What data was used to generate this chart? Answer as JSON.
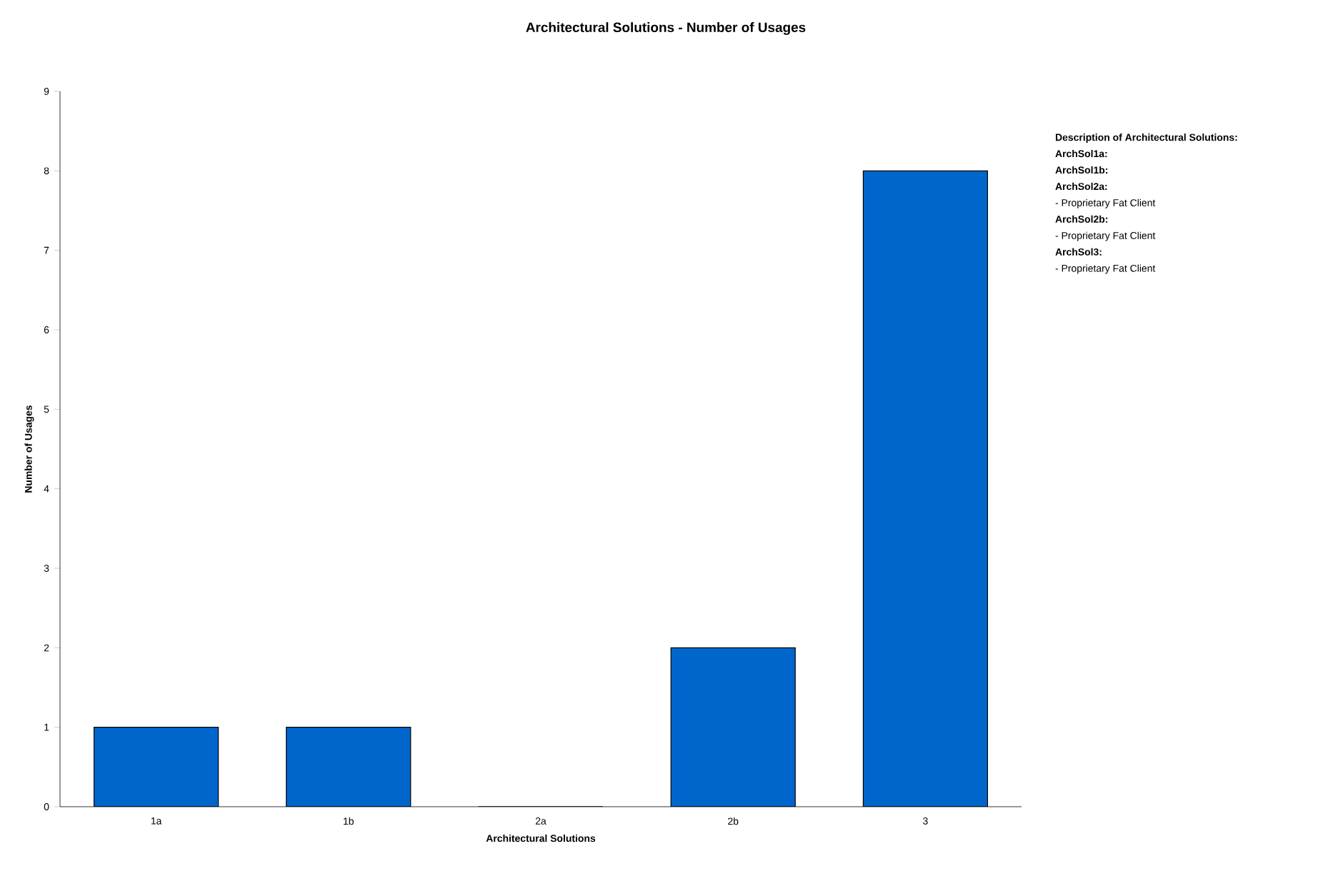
{
  "chart_data": {
    "type": "bar",
    "title": "Architectural Solutions - Number of Usages",
    "xlabel": "Architectural Solutions",
    "ylabel": "Number of Usages",
    "categories": [
      "1a",
      "1b",
      "2a",
      "2b",
      "3"
    ],
    "values": [
      1,
      1,
      0,
      2,
      8
    ],
    "color": "#0066cc",
    "ylim": [
      0,
      9
    ],
    "yticks": [
      0,
      1,
      2,
      3,
      4,
      5,
      6,
      7,
      8,
      9
    ],
    "annotations": [
      "**Description of Architectural Solutions:**",
      "**ArchSol1a:**",
      "**ArchSol1b:**",
      "**ArchSol2a:**",
      "- Proprietary Fat Client",
      "**ArchSol2b:**",
      "- Proprietary Fat Client",
      "**ArchSol3:**",
      "- Proprietary Fat Client"
    ]
  }
}
